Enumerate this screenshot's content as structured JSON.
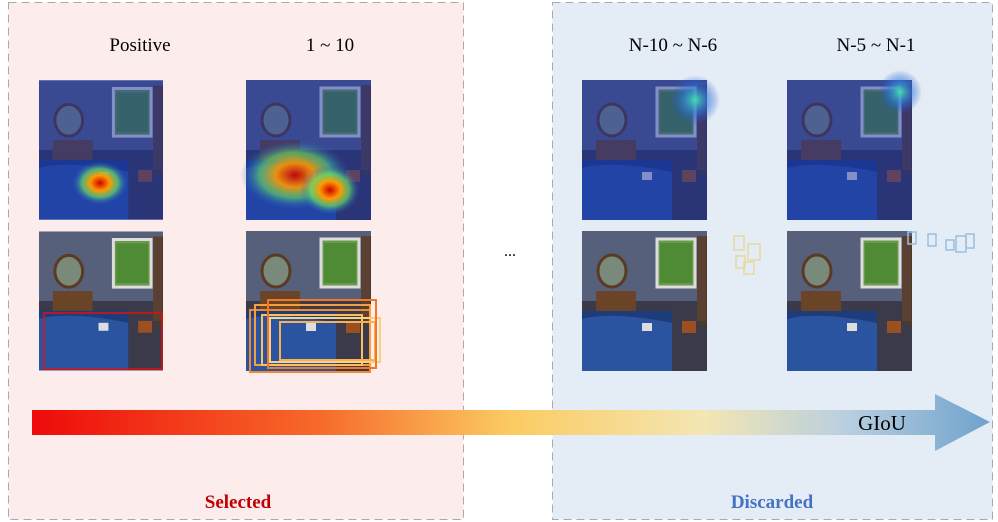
{
  "columns": [
    "Positive",
    "1 ~ 10",
    "N-10 ~ N-6",
    "N-5 ~ N-1"
  ],
  "ellipsis": "...",
  "arrow_label": "GIoU",
  "panels": {
    "left": "Selected",
    "right": "Discarded"
  }
}
